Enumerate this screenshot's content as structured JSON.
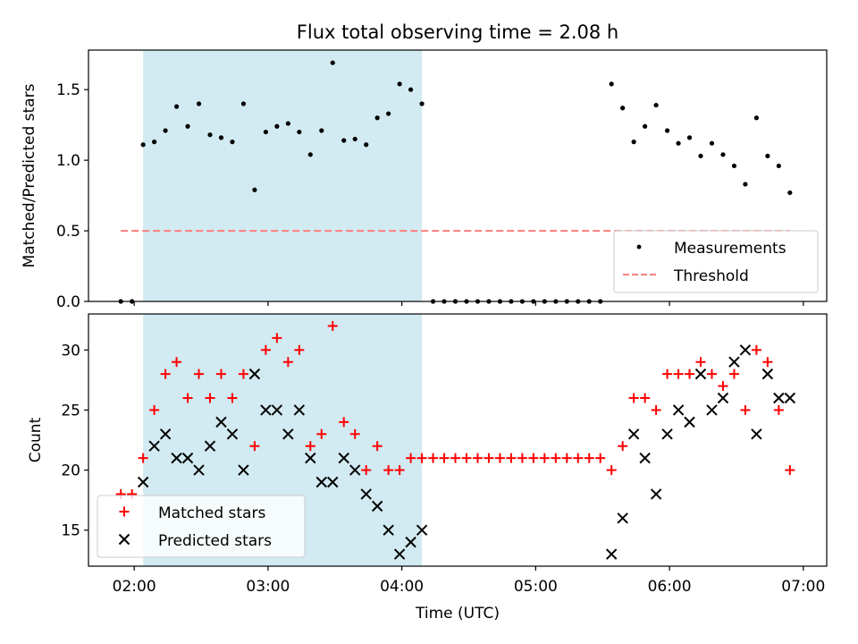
{
  "figure": {
    "title": "Flux total observing time = 2.08 h",
    "xlabel": "Time (UTC)",
    "x_ticks": [
      "02:00",
      "03:00",
      "04:00",
      "05:00",
      "06:00",
      "07:00"
    ],
    "x_tick_values": [
      120,
      180,
      240,
      300,
      360,
      420
    ],
    "xlim": [
      99.5,
      430.5
    ],
    "observing_window": {
      "start": 124,
      "end": 249,
      "color": "#add8e6"
    }
  },
  "chart_data": [
    {
      "type": "scatter",
      "panel": "top",
      "title": "Flux total observing time = 2.08 h",
      "xlabel": "",
      "ylabel": "Matched/Predicted stars",
      "ylim": [
        0,
        1.78
      ],
      "y_ticks": [
        "0.0",
        "0.5",
        "1.0",
        "1.5"
      ],
      "y_tick_values": [
        0,
        0.5,
        1.0,
        1.5
      ],
      "legend_position": "lower-right",
      "series": [
        {
          "name": "Measurements",
          "marker": "dot",
          "color": "#000000",
          "points": [
            [
              114,
              0
            ],
            [
              119,
              0
            ],
            [
              124,
              1.11
            ],
            [
              129,
              1.13
            ],
            [
              134,
              1.21
            ],
            [
              139,
              1.38
            ],
            [
              144,
              1.24
            ],
            [
              149,
              1.4
            ],
            [
              154,
              1.18
            ],
            [
              159,
              1.16
            ],
            [
              164,
              1.13
            ],
            [
              169,
              1.4
            ],
            [
              174,
              0.79
            ],
            [
              179,
              1.2
            ],
            [
              184,
              1.24
            ],
            [
              189,
              1.26
            ],
            [
              194,
              1.2
            ],
            [
              199,
              1.04
            ],
            [
              204,
              1.21
            ],
            [
              209,
              1.69
            ],
            [
              214,
              1.14
            ],
            [
              219,
              1.15
            ],
            [
              224,
              1.11
            ],
            [
              229,
              1.3
            ],
            [
              234,
              1.33
            ],
            [
              239,
              1.54
            ],
            [
              244,
              1.5
            ],
            [
              249,
              1.4
            ],
            [
              254,
              0
            ],
            [
              259,
              0
            ],
            [
              264,
              0
            ],
            [
              269,
              0
            ],
            [
              274,
              0
            ],
            [
              279,
              0
            ],
            [
              284,
              0
            ],
            [
              289,
              0
            ],
            [
              294,
              0
            ],
            [
              299,
              0
            ],
            [
              304,
              0
            ],
            [
              309,
              0
            ],
            [
              314,
              0
            ],
            [
              319,
              0
            ],
            [
              324,
              0
            ],
            [
              329,
              0
            ],
            [
              334,
              1.54
            ],
            [
              339,
              1.37
            ],
            [
              344,
              1.13
            ],
            [
              349,
              1.24
            ],
            [
              354,
              1.39
            ],
            [
              359,
              1.21
            ],
            [
              364,
              1.12
            ],
            [
              369,
              1.16
            ],
            [
              374,
              1.03
            ],
            [
              379,
              1.12
            ],
            [
              384,
              1.04
            ],
            [
              389,
              0.96
            ],
            [
              394,
              0.83
            ],
            [
              399,
              1.3
            ],
            [
              404,
              1.03
            ],
            [
              409,
              0.96
            ],
            [
              414,
              0.77
            ]
          ]
        },
        {
          "name": "Threshold",
          "line": "dashed",
          "color": "#ff7f7f",
          "x": [
            114,
            414
          ],
          "values": [
            0.5,
            0.5
          ]
        }
      ]
    },
    {
      "type": "scatter",
      "panel": "bottom",
      "xlabel": "Time (UTC)",
      "ylabel": "Count",
      "ylim": [
        12,
        33
      ],
      "y_ticks": [
        "15",
        "20",
        "25",
        "30"
      ],
      "y_tick_values": [
        15,
        20,
        25,
        30
      ],
      "legend_position": "lower-left",
      "series": [
        {
          "name": "Matched stars",
          "marker": "+",
          "color": "#ff0000",
          "points": [
            [
              114,
              18
            ],
            [
              119,
              18
            ],
            [
              124,
              21
            ],
            [
              129,
              25
            ],
            [
              134,
              28
            ],
            [
              139,
              29
            ],
            [
              144,
              26
            ],
            [
              149,
              28
            ],
            [
              154,
              26
            ],
            [
              159,
              28
            ],
            [
              164,
              26
            ],
            [
              169,
              28
            ],
            [
              174,
              22
            ],
            [
              179,
              30
            ],
            [
              184,
              31
            ],
            [
              189,
              29
            ],
            [
              194,
              30
            ],
            [
              199,
              22
            ],
            [
              204,
              23
            ],
            [
              209,
              32
            ],
            [
              214,
              24
            ],
            [
              219,
              23
            ],
            [
              224,
              20
            ],
            [
              229,
              22
            ],
            [
              234,
              20
            ],
            [
              239,
              20
            ],
            [
              244,
              21
            ],
            [
              249,
              21
            ],
            [
              254,
              21
            ],
            [
              259,
              21
            ],
            [
              264,
              21
            ],
            [
              269,
              21
            ],
            [
              274,
              21
            ],
            [
              279,
              21
            ],
            [
              284,
              21
            ],
            [
              289,
              21
            ],
            [
              294,
              21
            ],
            [
              299,
              21
            ],
            [
              304,
              21
            ],
            [
              309,
              21
            ],
            [
              314,
              21
            ],
            [
              319,
              21
            ],
            [
              324,
              21
            ],
            [
              329,
              21
            ],
            [
              334,
              20
            ],
            [
              339,
              22
            ],
            [
              344,
              26
            ],
            [
              349,
              26
            ],
            [
              354,
              25
            ],
            [
              359,
              28
            ],
            [
              364,
              28
            ],
            [
              369,
              28
            ],
            [
              374,
              29
            ],
            [
              379,
              28
            ],
            [
              384,
              27
            ],
            [
              389,
              28
            ],
            [
              394,
              25
            ],
            [
              399,
              30
            ],
            [
              404,
              29
            ],
            [
              409,
              25
            ],
            [
              414,
              20
            ]
          ]
        },
        {
          "name": "Predicted stars",
          "marker": "x",
          "color": "#000000",
          "points": [
            [
              124,
              19
            ],
            [
              129,
              22
            ],
            [
              134,
              23
            ],
            [
              139,
              21
            ],
            [
              144,
              21
            ],
            [
              149,
              20
            ],
            [
              154,
              22
            ],
            [
              159,
              24
            ],
            [
              164,
              23
            ],
            [
              169,
              20
            ],
            [
              174,
              28
            ],
            [
              179,
              25
            ],
            [
              184,
              25
            ],
            [
              189,
              23
            ],
            [
              194,
              25
            ],
            [
              199,
              21
            ],
            [
              204,
              19
            ],
            [
              209,
              19
            ],
            [
              214,
              21
            ],
            [
              219,
              20
            ],
            [
              224,
              18
            ],
            [
              229,
              17
            ],
            [
              234,
              15
            ],
            [
              239,
              13
            ],
            [
              244,
              14
            ],
            [
              249,
              15
            ],
            [
              334,
              13
            ],
            [
              339,
              16
            ],
            [
              344,
              23
            ],
            [
              349,
              21
            ],
            [
              354,
              18
            ],
            [
              359,
              23
            ],
            [
              364,
              25
            ],
            [
              369,
              24
            ],
            [
              374,
              28
            ],
            [
              379,
              25
            ],
            [
              384,
              26
            ],
            [
              389,
              29
            ],
            [
              394,
              30
            ],
            [
              399,
              23
            ],
            [
              404,
              28
            ],
            [
              409,
              26
            ],
            [
              414,
              26
            ]
          ]
        }
      ]
    }
  ]
}
